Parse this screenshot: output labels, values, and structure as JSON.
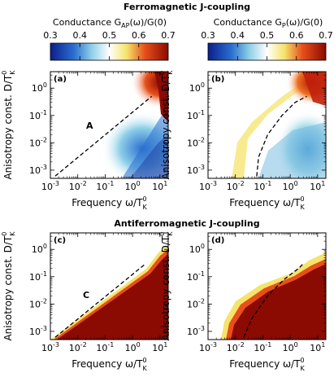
{
  "figure": {
    "top_title": "Ferromagnetic J-coupling",
    "bottom_title": "Antiferromagnetic J-coupling",
    "ylabel": "Anisotropy const. D/T",
    "ylabel_super": "0",
    "ylabel_sub": "K",
    "xlabel": "Frequency ω/T",
    "xlabel_super": "0",
    "xlabel_sub": "K"
  },
  "colorbars": [
    {
      "label_prefix": "Conductance G",
      "label_sub": "AP",
      "label_suffix": "(ω)/G(0)",
      "ticks": [
        "0.3",
        "0.4",
        "0.5",
        "0.6",
        "0.7"
      ]
    },
    {
      "label_prefix": "Conductance G",
      "label_sub": "P",
      "label_suffix": "(ω)/G(0)",
      "ticks": [
        "0.3",
        "0.4",
        "0.5",
        "0.6",
        "0.7"
      ]
    }
  ],
  "colors": {
    "low": "#0a1f8c",
    "mid_low": "#5aa8e0",
    "mid": "#ffffff",
    "mid_high": "#f5d020",
    "high": "#8b0a02",
    "dashed": "#000000"
  },
  "chart_data": [
    {
      "type": "heatmap",
      "panel_label": "(a)",
      "annotation": "A",
      "x_scale": "log",
      "y_scale": "log",
      "xlim": [
        0.001,
        20
      ],
      "ylim": [
        0.0005,
        4
      ],
      "x_ticks": [
        "10-3",
        "10-2",
        "10-1",
        "100",
        "101"
      ],
      "y_ticks": [
        "10-3",
        "10-2",
        "10-1",
        "100"
      ],
      "colorbar_range": [
        0.3,
        0.7
      ],
      "dashed_curve": {
        "x": [
          0.0015,
          5
        ],
        "y": [
          0.0006,
          0.5
        ]
      }
    },
    {
      "type": "heatmap",
      "panel_label": "(b)",
      "annotation": "",
      "x_scale": "log",
      "y_scale": "log",
      "xlim": [
        0.001,
        20
      ],
      "ylim": [
        0.0005,
        4
      ],
      "x_ticks": [
        "10-3",
        "10-2",
        "10-1",
        "100",
        "101"
      ],
      "y_ticks": [
        "10-3",
        "10-2",
        "10-1",
        "100"
      ],
      "colorbar_range": [
        0.3,
        0.7
      ],
      "dashed_curve": {
        "x": [
          0.06,
          0.07,
          0.15,
          0.5,
          1.5,
          4
        ],
        "y": [
          0.0006,
          0.003,
          0.02,
          0.1,
          0.3,
          0.5
        ]
      }
    },
    {
      "type": "heatmap",
      "panel_label": "(c)",
      "annotation": "C",
      "x_scale": "log",
      "y_scale": "log",
      "xlim": [
        0.001,
        20
      ],
      "ylim": [
        0.0005,
        4
      ],
      "x_ticks": [
        "10-3",
        "10-2",
        "10-1",
        "100",
        "101"
      ],
      "y_ticks": [
        "10-3",
        "10-2",
        "10-1",
        "100"
      ],
      "colorbar_range": [
        0.3,
        0.7
      ],
      "dashed_curve": {
        "x": [
          0.0015,
          3
        ],
        "y": [
          0.0006,
          0.3
        ]
      }
    },
    {
      "type": "heatmap",
      "panel_label": "(d)",
      "annotation": "",
      "x_scale": "log",
      "y_scale": "log",
      "xlim": [
        0.001,
        20
      ],
      "ylim": [
        0.0005,
        4
      ],
      "x_ticks": [
        "10-3",
        "10-2",
        "10-1",
        "100",
        "101"
      ],
      "y_ticks": [
        "10-3",
        "10-2",
        "10-1",
        "100"
      ],
      "colorbar_range": [
        0.3,
        0.7
      ],
      "dashed_curve": {
        "x": [
          0.02,
          0.04,
          0.15,
          0.6,
          2,
          3
        ],
        "y": [
          0.0006,
          0.003,
          0.02,
          0.08,
          0.2,
          0.3
        ]
      }
    }
  ]
}
